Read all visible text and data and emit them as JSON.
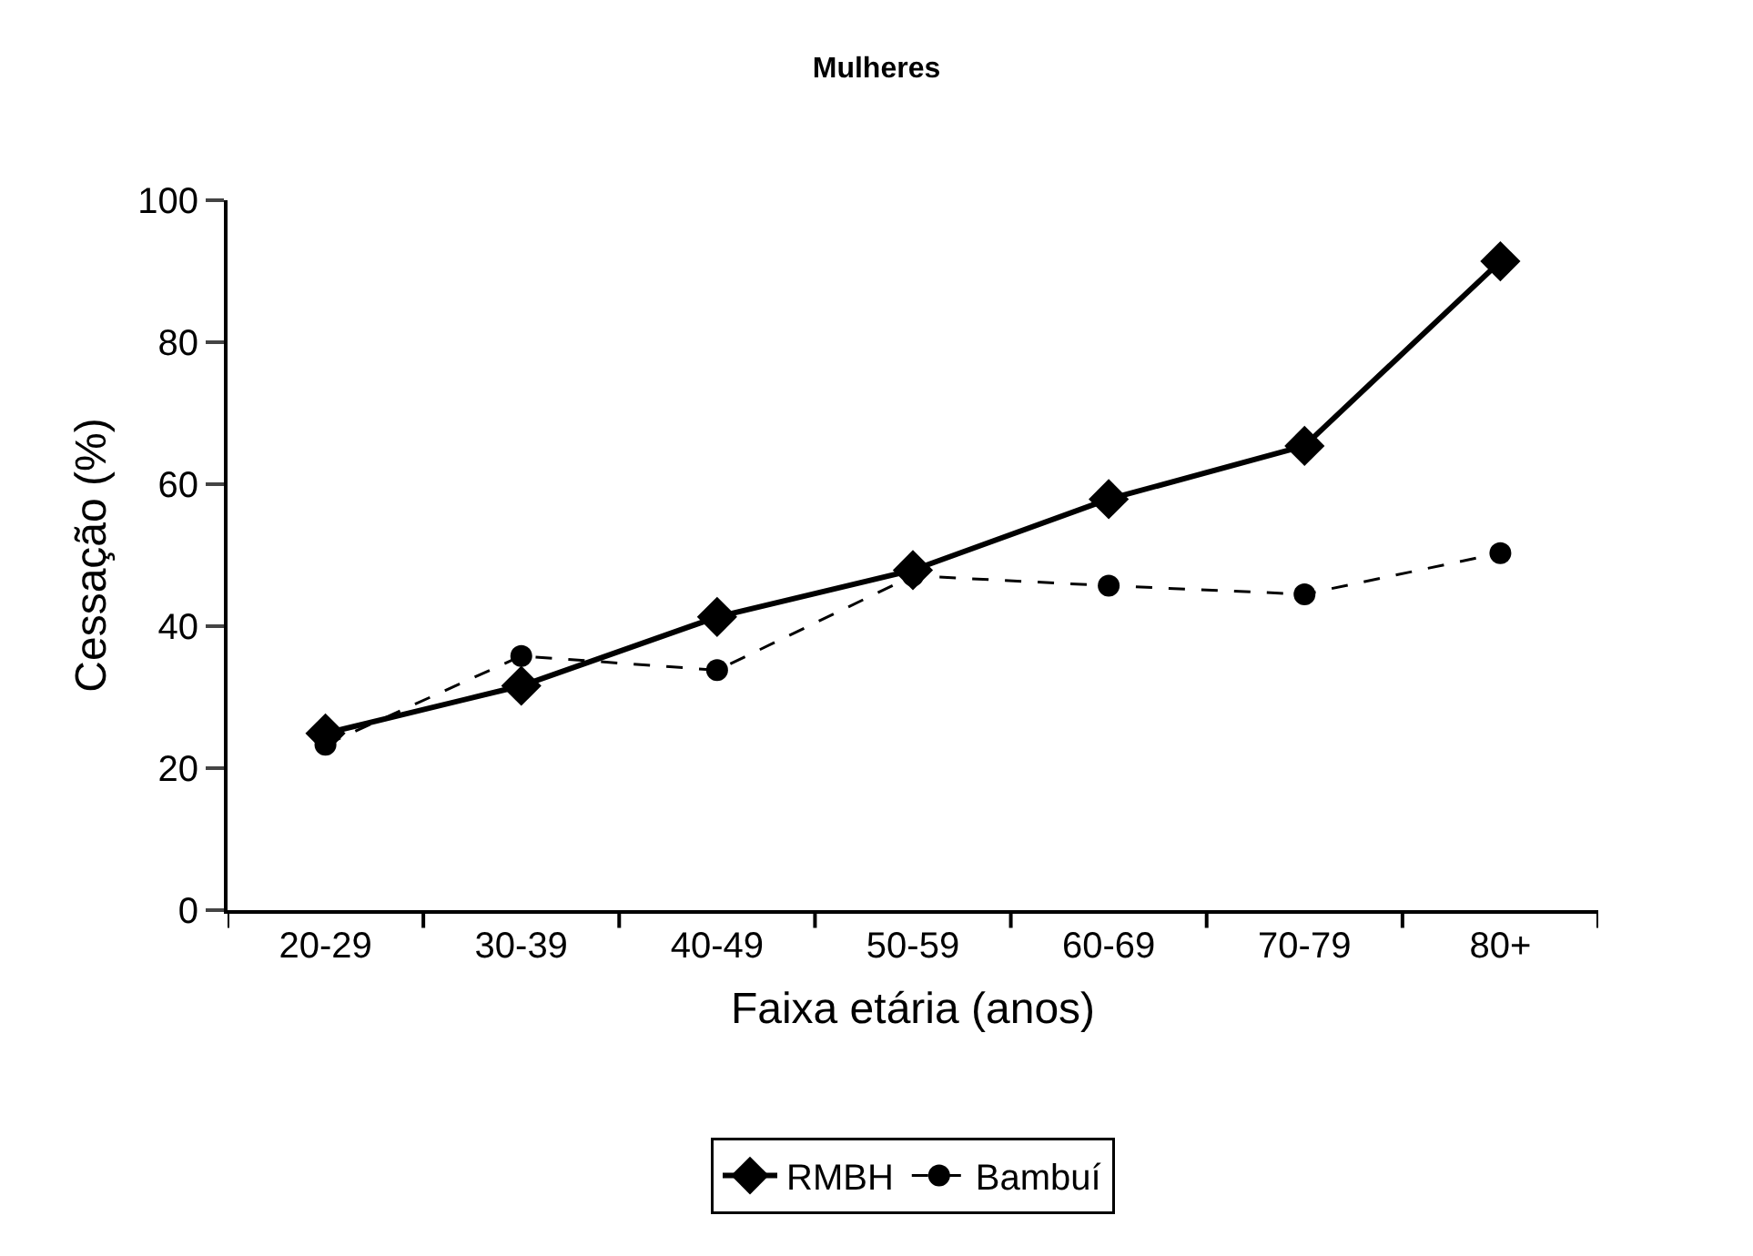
{
  "chart_data": {
    "type": "line",
    "title": "Mulheres",
    "xlabel": "Faixa etária (anos)",
    "ylabel": "Cessação (%)",
    "categories": [
      "20-29",
      "30-39",
      "40-49",
      "50-59",
      "60-69",
      "70-79",
      "80+"
    ],
    "series": [
      {
        "name": "RMBH",
        "color": "#000000",
        "marker": "diamond",
        "line_style": "solid",
        "values": [
          24.9,
          31.6,
          41.3,
          47.9,
          57.9,
          65.4,
          91.4
        ]
      },
      {
        "name": "Bambuí",
        "color": "#000000",
        "marker": "circle",
        "line_style": "dashed",
        "values": [
          23.3,
          35.8,
          33.8,
          47.1,
          45.7,
          44.5,
          50.3
        ]
      }
    ],
    "ylim": [
      0,
      100
    ],
    "yticks": [
      0,
      20,
      40,
      60,
      80,
      100
    ],
    "grid": false,
    "legend": "bottom"
  }
}
